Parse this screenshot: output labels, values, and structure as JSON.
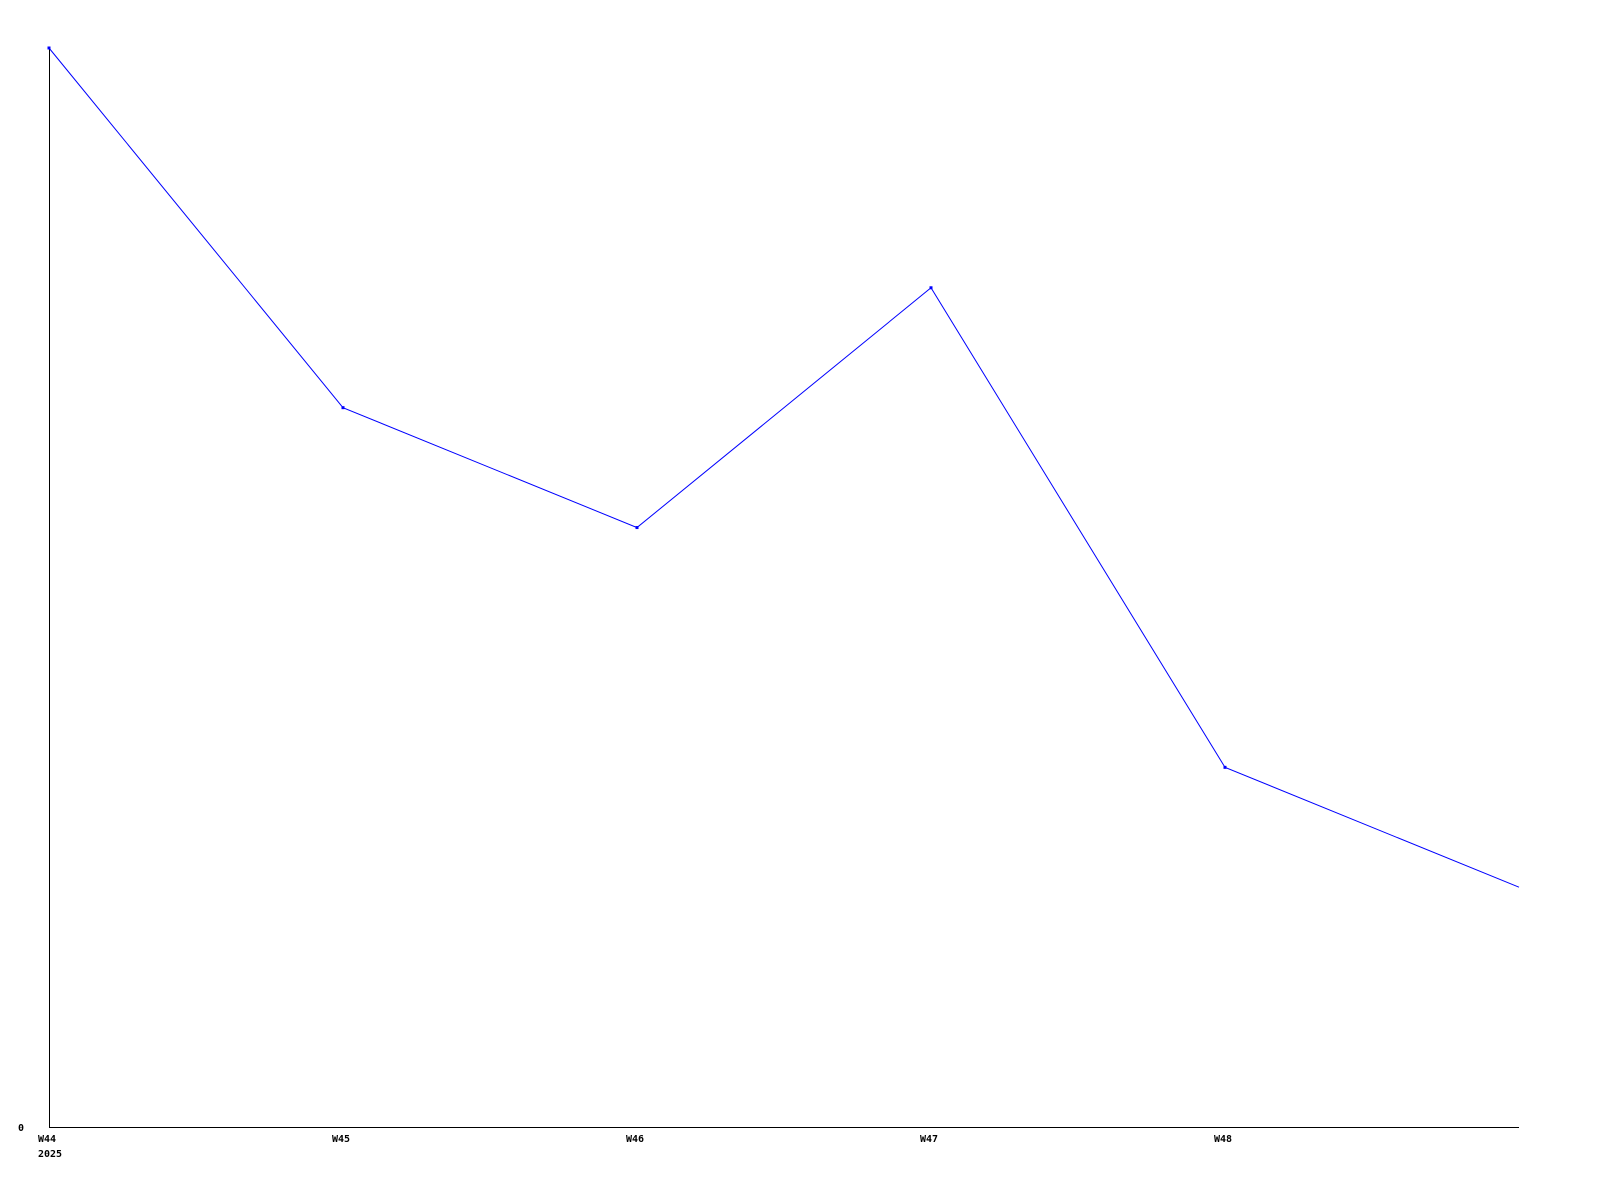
{
  "chart_data": {
    "type": "line",
    "title": "",
    "xlabel": "",
    "ylabel": "",
    "x_tick_labels": [
      "W44",
      "W45",
      "W46",
      "W47",
      "W48"
    ],
    "x_year_label": "2025",
    "y_tick_labels": [
      "0"
    ],
    "values": [
      9,
      6,
      5,
      7,
      3,
      2
    ],
    "ylim": [
      0,
      9
    ],
    "grid": false,
    "line_color": "#0000ff",
    "axis_color": "#000000"
  }
}
